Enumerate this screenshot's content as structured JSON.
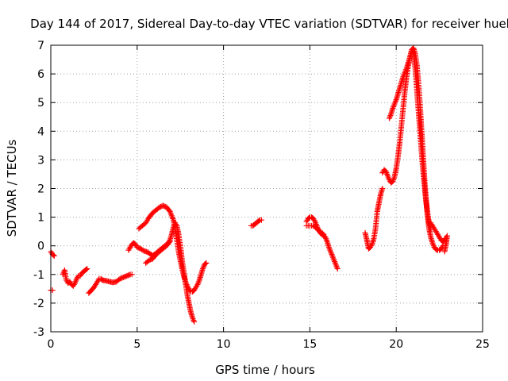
{
  "chart_data": {
    "type": "scatter",
    "title": "Day 144 of 2017, Sidereal Day-to-day VTEC variation (SDTVAR) for receiver huel",
    "xlabel": "GPS time / hours",
    "ylabel": "SDTVAR / TECUs",
    "xlim": [
      0,
      25
    ],
    "ylim": [
      -3,
      7
    ],
    "xticks": [
      0,
      5,
      10,
      15,
      20,
      25
    ],
    "yticks": [
      -3,
      -2,
      -1,
      0,
      1,
      2,
      3,
      4,
      5,
      6,
      7
    ],
    "xtick_labels": [
      "0",
      "5",
      "10",
      "15",
      "20",
      "25"
    ],
    "ytick_labels": [
      "-3",
      "-2",
      "-1",
      "0",
      "1",
      "2",
      "3",
      "4",
      "5",
      "6",
      "7"
    ],
    "grid": true,
    "marker": "plus",
    "color": "#ff0000",
    "series": [
      {
        "name": "s1",
        "points": [
          [
            0.0,
            -0.2
          ],
          [
            0.1,
            -0.3
          ],
          [
            0.2,
            -0.35
          ]
        ]
      },
      {
        "name": "s2",
        "points": [
          [
            0.0,
            -1.55
          ],
          [
            0.1,
            -1.55
          ]
        ]
      },
      {
        "name": "s3",
        "points": [
          [
            0.7,
            -1.0
          ],
          [
            0.8,
            -0.85
          ],
          [
            0.9,
            -1.2
          ],
          [
            1.0,
            -1.3
          ],
          [
            1.1,
            -1.25
          ],
          [
            1.2,
            -1.35
          ],
          [
            1.3,
            -1.4
          ],
          [
            1.4,
            -1.3
          ],
          [
            1.5,
            -1.15
          ],
          [
            1.6,
            -1.05
          ],
          [
            1.7,
            -1.05
          ],
          [
            1.8,
            -0.95
          ],
          [
            1.9,
            -0.9
          ],
          [
            2.0,
            -0.85
          ],
          [
            2.1,
            -0.8
          ]
        ]
      },
      {
        "name": "s4",
        "points": [
          [
            2.2,
            -1.65
          ],
          [
            2.35,
            -1.55
          ],
          [
            2.5,
            -1.45
          ],
          [
            2.6,
            -1.35
          ],
          [
            2.7,
            -1.25
          ],
          [
            2.8,
            -1.15
          ],
          [
            2.9,
            -1.15
          ],
          [
            3.0,
            -1.2
          ],
          [
            3.2,
            -1.22
          ],
          [
            3.4,
            -1.25
          ],
          [
            3.6,
            -1.28
          ],
          [
            3.8,
            -1.25
          ],
          [
            4.0,
            -1.15
          ],
          [
            4.2,
            -1.1
          ],
          [
            4.4,
            -1.05
          ],
          [
            4.6,
            -1.0
          ],
          [
            4.7,
            -1.0
          ]
        ]
      },
      {
        "name": "s5",
        "points": [
          [
            4.5,
            -0.15
          ],
          [
            4.6,
            -0.05
          ],
          [
            4.7,
            0.05
          ],
          [
            4.8,
            0.1
          ],
          [
            4.9,
            0.05
          ],
          [
            5.0,
            -0.05
          ],
          [
            5.2,
            -0.1
          ],
          [
            5.4,
            -0.18
          ],
          [
            5.6,
            -0.22
          ],
          [
            5.8,
            -0.3
          ],
          [
            5.9,
            -0.35
          ],
          [
            6.0,
            -0.3
          ],
          [
            6.2,
            -0.2
          ],
          [
            6.4,
            -0.1
          ],
          [
            6.6,
            0.0
          ],
          [
            6.8,
            0.1
          ],
          [
            6.9,
            0.2
          ],
          [
            7.0,
            0.4
          ],
          [
            7.1,
            0.65
          ],
          [
            7.2,
            0.8
          ],
          [
            7.3,
            0.7
          ],
          [
            7.4,
            0.4
          ],
          [
            7.5,
            0.0
          ],
          [
            7.6,
            -0.5
          ],
          [
            7.7,
            -0.9
          ],
          [
            7.8,
            -1.3
          ],
          [
            7.9,
            -1.7
          ],
          [
            8.0,
            -2.0
          ],
          [
            8.1,
            -2.3
          ],
          [
            8.2,
            -2.5
          ],
          [
            8.3,
            -2.65
          ]
        ]
      },
      {
        "name": "s6",
        "points": [
          [
            5.1,
            0.6
          ],
          [
            5.3,
            0.7
          ],
          [
            5.5,
            0.8
          ],
          [
            5.7,
            1.0
          ],
          [
            5.9,
            1.15
          ],
          [
            6.1,
            1.25
          ],
          [
            6.3,
            1.35
          ],
          [
            6.5,
            1.4
          ],
          [
            6.7,
            1.35
          ],
          [
            6.9,
            1.2
          ],
          [
            7.1,
            0.9
          ],
          [
            7.2,
            0.6
          ],
          [
            7.3,
            0.2
          ],
          [
            7.4,
            -0.2
          ],
          [
            7.5,
            -0.5
          ],
          [
            7.6,
            -0.8
          ],
          [
            7.7,
            -1.05
          ],
          [
            7.8,
            -1.25
          ],
          [
            7.9,
            -1.4
          ],
          [
            8.0,
            -1.5
          ],
          [
            8.1,
            -1.6
          ],
          [
            8.2,
            -1.6
          ],
          [
            8.3,
            -1.55
          ],
          [
            8.4,
            -1.45
          ],
          [
            8.5,
            -1.35
          ],
          [
            8.6,
            -1.2
          ],
          [
            8.7,
            -1.0
          ],
          [
            8.8,
            -0.8
          ],
          [
            8.9,
            -0.65
          ],
          [
            9.0,
            -0.6
          ]
        ]
      },
      {
        "name": "s7",
        "points": [
          [
            5.5,
            -0.6
          ],
          [
            5.7,
            -0.5
          ],
          [
            5.9,
            -0.45
          ],
          [
            6.1,
            -0.3
          ],
          [
            6.3,
            -0.2
          ],
          [
            6.5,
            -0.1
          ],
          [
            6.7,
            0.0
          ],
          [
            6.9,
            0.15
          ]
        ]
      },
      {
        "name": "s8",
        "points": [
          [
            11.6,
            0.7
          ],
          [
            11.7,
            0.7
          ],
          [
            11.8,
            0.75
          ],
          [
            11.9,
            0.8
          ],
          [
            12.0,
            0.85
          ],
          [
            12.1,
            0.9
          ],
          [
            12.2,
            0.9
          ]
        ]
      },
      {
        "name": "s9",
        "points": [
          [
            14.8,
            0.85
          ],
          [
            14.9,
            0.95
          ],
          [
            15.0,
            1.0
          ],
          [
            15.1,
            1.0
          ],
          [
            15.2,
            0.95
          ],
          [
            15.3,
            0.85
          ],
          [
            15.4,
            0.7
          ],
          [
            15.5,
            0.55
          ],
          [
            15.6,
            0.45
          ],
          [
            15.7,
            0.4
          ],
          [
            15.8,
            0.35
          ],
          [
            15.9,
            0.3
          ],
          [
            16.0,
            0.15
          ],
          [
            16.1,
            -0.05
          ],
          [
            16.2,
            -0.2
          ],
          [
            16.3,
            -0.35
          ],
          [
            16.4,
            -0.5
          ],
          [
            16.5,
            -0.65
          ],
          [
            16.6,
            -0.8
          ]
        ]
      },
      {
        "name": "s10",
        "points": [
          [
            14.8,
            0.7
          ],
          [
            15.0,
            0.7
          ],
          [
            15.2,
            0.7
          ],
          [
            15.4,
            0.6
          ],
          [
            15.6,
            0.5
          ],
          [
            15.8,
            0.4
          ]
        ]
      },
      {
        "name": "s11",
        "points": [
          [
            18.2,
            0.45
          ],
          [
            18.3,
            0.2
          ],
          [
            18.4,
            -0.1
          ],
          [
            18.5,
            -0.05
          ],
          [
            18.6,
            0.05
          ],
          [
            18.7,
            0.25
          ],
          [
            18.8,
            0.6
          ],
          [
            18.9,
            1.2
          ],
          [
            19.0,
            1.5
          ],
          [
            19.1,
            1.8
          ],
          [
            19.2,
            2.0
          ]
        ]
      },
      {
        "name": "s12",
        "points": [
          [
            19.2,
            2.55
          ],
          [
            19.3,
            2.65
          ],
          [
            19.4,
            2.6
          ],
          [
            19.5,
            2.45
          ],
          [
            19.6,
            2.3
          ],
          [
            19.7,
            2.2
          ],
          [
            19.8,
            2.25
          ],
          [
            19.9,
            2.4
          ],
          [
            20.0,
            2.7
          ],
          [
            20.1,
            3.1
          ],
          [
            20.2,
            3.6
          ],
          [
            20.3,
            4.2
          ],
          [
            20.4,
            4.8
          ],
          [
            20.5,
            5.4
          ],
          [
            20.6,
            5.9
          ],
          [
            20.7,
            6.3
          ],
          [
            20.8,
            6.6
          ],
          [
            20.9,
            6.8
          ],
          [
            21.0,
            6.7
          ],
          [
            21.1,
            6.2
          ],
          [
            21.2,
            5.4
          ],
          [
            21.3,
            4.6
          ],
          [
            21.4,
            3.8
          ],
          [
            21.5,
            3.0
          ],
          [
            21.6,
            2.3
          ],
          [
            21.7,
            1.7
          ],
          [
            21.8,
            1.2
          ],
          [
            21.9,
            0.8
          ],
          [
            22.0,
            0.6
          ]
        ]
      },
      {
        "name": "s13",
        "points": [
          [
            19.6,
            4.45
          ],
          [
            19.7,
            4.6
          ],
          [
            19.8,
            4.8
          ],
          [
            19.9,
            4.95
          ],
          [
            20.0,
            5.1
          ],
          [
            20.1,
            5.3
          ],
          [
            20.2,
            5.5
          ],
          [
            20.3,
            5.7
          ],
          [
            20.4,
            5.9
          ],
          [
            20.5,
            6.05
          ],
          [
            20.6,
            6.2
          ],
          [
            20.7,
            6.4
          ],
          [
            20.8,
            6.6
          ],
          [
            20.9,
            6.85
          ],
          [
            21.0,
            6.9
          ],
          [
            21.1,
            6.7
          ],
          [
            21.2,
            6.3
          ],
          [
            21.3,
            5.6
          ],
          [
            21.4,
            4.7
          ],
          [
            21.5,
            3.7
          ],
          [
            21.6,
            2.7
          ],
          [
            21.7,
            1.8
          ],
          [
            21.8,
            1.1
          ],
          [
            21.9,
            0.6
          ],
          [
            22.0,
            0.3
          ],
          [
            22.1,
            0.1
          ],
          [
            22.2,
            -0.05
          ],
          [
            22.3,
            -0.12
          ],
          [
            22.4,
            -0.15
          ],
          [
            22.5,
            -0.15
          ],
          [
            22.6,
            -0.1
          ],
          [
            22.7,
            0.0
          ]
        ]
      },
      {
        "name": "s14",
        "points": [
          [
            22.0,
            0.8
          ],
          [
            22.1,
            0.7
          ],
          [
            22.2,
            0.6
          ],
          [
            22.3,
            0.5
          ],
          [
            22.4,
            0.4
          ],
          [
            22.5,
            0.3
          ],
          [
            22.6,
            0.2
          ],
          [
            22.7,
            0.15
          ],
          [
            22.8,
            0.2
          ],
          [
            22.9,
            0.3
          ]
        ]
      },
      {
        "name": "s15",
        "points": [
          [
            22.8,
            -0.2
          ],
          [
            22.9,
            0.1
          ],
          [
            22.95,
            0.35
          ]
        ]
      }
    ]
  }
}
